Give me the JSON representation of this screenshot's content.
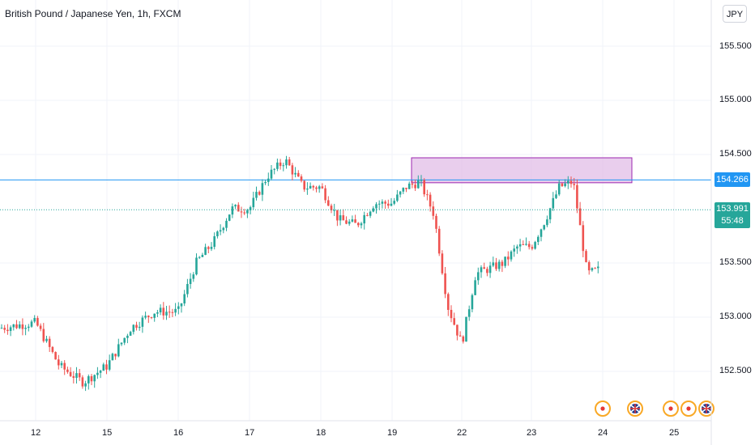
{
  "header": {
    "title": "British Pound / Japanese Yen, 1h, FXCM",
    "currency_button": "JPY"
  },
  "price_axis": {
    "ticks": [
      "155.500",
      "155.000",
      "154.500",
      "153.500",
      "153.000",
      "152.500"
    ]
  },
  "time_axis": {
    "ticks": [
      "12",
      "15",
      "16",
      "17",
      "18",
      "19",
      "22",
      "23",
      "24",
      "25"
    ]
  },
  "markers": {
    "horizontal_line_label": "154.266",
    "last_price_label": "153.991",
    "countdown_label": "55:48"
  },
  "colors": {
    "up": "#26a69a",
    "down": "#ef5350",
    "horizontal_line": "#2196f3",
    "zone_fill": "#e1bee7",
    "zone_border": "#9c27b0",
    "last_price": "#26a69a"
  },
  "chart_data": {
    "type": "candlestick",
    "title": "British Pound / Japanese Yen, 1h, FXCM",
    "x_ticks": [
      "12",
      "15",
      "16",
      "17",
      "18",
      "19",
      "22",
      "23",
      "24",
      "25"
    ],
    "y_ticks": [
      155.5,
      155.0,
      154.5,
      153.5,
      153.0,
      152.5
    ],
    "ylim": [
      152.05,
      155.95
    ],
    "grid": true,
    "series": [
      {
        "day": "12",
        "close": [
          152.95,
          152.55,
          152.4
        ]
      },
      {
        "day": "15",
        "close": [
          152.55,
          152.9,
          153.05
        ]
      },
      {
        "day": "16",
        "close": [
          153.05,
          153.5,
          153.7,
          154.0
        ]
      },
      {
        "day": "17",
        "close": [
          154.0,
          154.3,
          154.45,
          154.2
        ]
      },
      {
        "day": "18",
        "close": [
          154.2,
          153.9,
          153.85,
          154.05
        ]
      },
      {
        "day": "19",
        "close": [
          154.05,
          154.2,
          154.25,
          153.95,
          153.1
        ]
      },
      {
        "day": "22",
        "close": [
          152.75,
          153.4,
          153.45,
          153.5,
          153.65
        ]
      },
      {
        "day": "23",
        "close": [
          153.65,
          153.9,
          154.2,
          154.25,
          153.4
        ]
      },
      {
        "day": "24",
        "close": [
          153.45,
          153.8,
          153.99
        ]
      }
    ],
    "horizontal_line": 154.266,
    "last_price": 153.991,
    "resistance_zone": {
      "top": 154.47,
      "bottom": 154.24,
      "from_day": "19",
      "to_day": "24"
    },
    "event_flags": [
      "jp-flag",
      "uk-flag",
      "jp-flag",
      "jp-flag",
      "uk-flag"
    ]
  }
}
